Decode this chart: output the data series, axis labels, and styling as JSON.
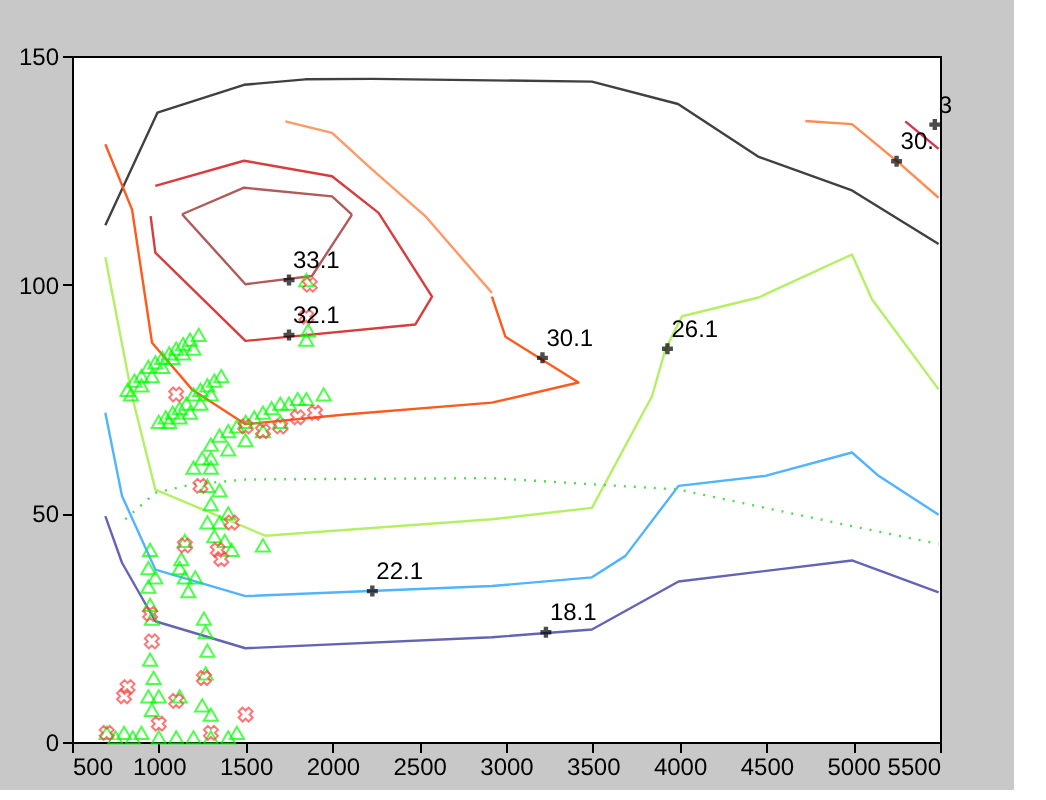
{
  "chart_data": {
    "type": "line",
    "xlim": [
      500,
      5500
    ],
    "ylim": [
      0,
      150
    ],
    "xticks": [
      500,
      1000,
      1500,
      2000,
      2500,
      3000,
      3500,
      4000,
      4500,
      5000,
      5500
    ],
    "yticks": [
      0,
      50,
      100,
      150
    ],
    "grid": false,
    "series": [
      {
        "type": "line",
        "color": "#404040",
        "x": [
          692,
          992,
          1491,
          1844,
          2228,
          3495,
          3991,
          4452,
          4993,
          5492
        ],
        "values": [
          113,
          137.6,
          143.7,
          144.9,
          145,
          144.4,
          139.5,
          128,
          120.6,
          108.9
        ]
      },
      {
        "type": "line",
        "color": "#ff9966",
        "x": [
          1729,
          1998,
          2228,
          2535,
          2919
        ],
        "values": [
          135.7,
          133.2,
          125.2,
          115,
          98.2
        ]
      },
      {
        "type": "line",
        "color": "#ff5a1e",
        "x": [
          2919,
          2997,
          3418,
          2919,
          2075,
          1499,
          1191,
          961,
          846,
          692
        ],
        "values": [
          97.4,
          88.6,
          78.6,
          74.2,
          71.6,
          69.5,
          77.1,
          87.3,
          116.4,
          130.7
        ]
      },
      {
        "color": "#b05a5a",
        "x": [
          1134,
          1491,
          1998,
          2113
        ],
        "values": [
          115.4,
          121.2,
          119.3,
          115.3
        ]
      },
      {
        "color": "#b05a5a",
        "x": [
          2113,
          1882,
          1499,
          1134
        ],
        "values": [
          115.3,
          101.9,
          100.1,
          115.4
        ]
      },
      {
        "color": "#d83c3c",
        "x": [
          980,
          1491,
          1998,
          2266,
          2574,
          2478,
          1499,
          980,
          953
        ],
        "values": [
          121.6,
          127.1,
          123.7,
          115.7,
          97.4,
          91.3,
          87.7,
          107,
          115
        ]
      },
      {
        "type": "line",
        "color": "#b4f064",
        "x": [
          692,
          846,
          980,
          1614,
          2919,
          3495,
          3841,
          3918,
          4014,
          4455,
          4993,
          5108,
          5492
        ],
        "values": [
          106,
          75.6,
          55.2,
          45.1,
          48.7,
          51.2,
          75.6,
          85.8,
          93.1,
          97.2,
          106.6,
          96.8,
          77.1
        ]
      },
      {
        "type": "line",
        "color": "#50b4ff",
        "x": [
          692,
          788,
          980,
          1499,
          2919,
          3495,
          3688,
          3994,
          4494,
          4993,
          5146,
          5492
        ],
        "values": [
          72,
          53.8,
          37.7,
          31.9,
          34.1,
          36,
          40.7,
          56,
          58.2,
          63.3,
          58.2,
          49.7
        ]
      },
      {
        "type": "line",
        "color": "#6464b4",
        "x": [
          692,
          788,
          980,
          1499,
          2919,
          3495,
          3994,
          4993,
          5492
        ],
        "values": [
          49.4,
          39.2,
          26.4,
          20.5,
          22.9,
          24.6,
          35.1,
          39.7,
          32.7
        ]
      },
      {
        "type": "line",
        "color": "#50dc50",
        "line_style": "dotted",
        "x": [
          807,
          980,
          1191,
          1499,
          2919,
          3994,
          4993,
          5492
        ],
        "values": [
          48.7,
          54.5,
          56.3,
          57.4,
          57.7,
          55.2,
          47.2,
          43.3
        ]
      },
      {
        "type": "line",
        "color": "#ff8c50",
        "x": [
          4724,
          4993,
          5262,
          5492
        ],
        "values": [
          135.8,
          135.1,
          126.7,
          119
        ]
      },
      {
        "type": "line",
        "color": "#dc3250",
        "x": [
          5300,
          5492
        ],
        "values": [
          135.7,
          129.7
        ]
      },
      {
        "type": "scatter",
        "marker": "triangle",
        "color": "#00ff00",
        "x": [
          820,
          860,
          900,
          940,
          980,
          1020,
          1060,
          1100,
          1140,
          1180,
          1230,
          840,
          900,
          960,
          1020,
          1080,
          1140,
          1200,
          1000,
          1040,
          1080,
          1120,
          1160,
          1200,
          1240,
          1280,
          1320,
          1360,
          1060,
          1120,
          1180,
          1240,
          1300,
          1250,
          1300,
          1350,
          1400,
          1450,
          1500,
          1550,
          1600,
          1650,
          1700,
          1750,
          1800,
          1850,
          1950,
          1200,
          1300,
          1400,
          1500,
          1600,
          1700,
          1300,
          1280,
          1300,
          1280,
          1320,
          1350,
          1380,
          1420,
          1600,
          1400,
          1350,
          1150,
          1130,
          1150,
          1170,
          1120,
          950,
          940,
          940,
          950,
          960,
          980,
          1260,
          1270,
          1280,
          1210,
          950,
          970,
          940,
          960,
          1000,
          1120,
          1250,
          1300,
          1270,
          700,
          750,
          800,
          850,
          900,
          1000,
          1100,
          1200,
          1300,
          1400,
          1450,
          1850,
          1850,
          1860
        ],
        "values": [
          77,
          79,
          80,
          82,
          83,
          84,
          85,
          86,
          87,
          88,
          89,
          76,
          78,
          80,
          82,
          84,
          85,
          86,
          70,
          71,
          72,
          73,
          74,
          76,
          77,
          78,
          79,
          80,
          70,
          71,
          72,
          74,
          76,
          62,
          65,
          67,
          68,
          69,
          70,
          71,
          72,
          73,
          74,
          74,
          75,
          75,
          76,
          60,
          62,
          64,
          66,
          68,
          70,
          60,
          56,
          52,
          48,
          45,
          48,
          44,
          42,
          43,
          50,
          55,
          44,
          40,
          36,
          33,
          38,
          42,
          38,
          34,
          30,
          27,
          36,
          27,
          24,
          20,
          36,
          18,
          14,
          10,
          7,
          10,
          10,
          8,
          6,
          15,
          2,
          1,
          2,
          1,
          2,
          1,
          1,
          1,
          1,
          1,
          2,
          101,
          88,
          90
        ]
      },
      {
        "type": "scatter",
        "marker": "cross",
        "color": "#ff3c3c",
        "x": [
          1850,
          1870,
          1900,
          1800,
          1700,
          1600,
          1500,
          1420,
          1360,
          1340,
          1150,
          1100,
          950,
          1240,
          800,
          820,
          960,
          1100,
          1260,
          1500,
          700,
          1000,
          1300
        ],
        "values": [
          93,
          100,
          72,
          71,
          69,
          68,
          69,
          48,
          40,
          42,
          43,
          76,
          28,
          56,
          10,
          12,
          22,
          9,
          14,
          6,
          2,
          4,
          2
        ]
      }
    ],
    "annotations": [
      {
        "text": "33.1",
        "x": 1750,
        "y": 101
      },
      {
        "text": "32.1",
        "x": 1750,
        "y": 89
      },
      {
        "text": "30.1",
        "x": 3210,
        "y": 84
      },
      {
        "text": "26.1",
        "x": 3930,
        "y": 86
      },
      {
        "text": "22.1",
        "x": 2230,
        "y": 33
      },
      {
        "text": "18.1",
        "x": 3230,
        "y": 24
      },
      {
        "text": "30.",
        "x": 5250,
        "y": 127
      },
      {
        "text": "3",
        "x": 5470,
        "y": 135
      }
    ]
  }
}
